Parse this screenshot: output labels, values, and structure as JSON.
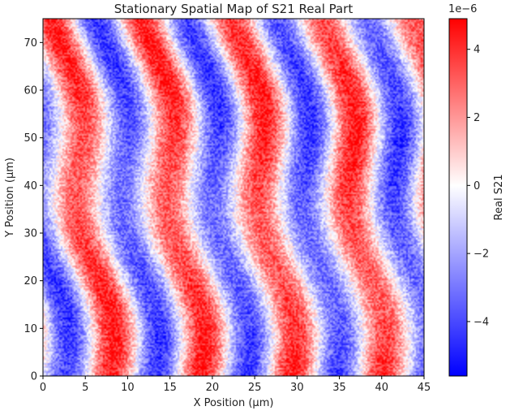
{
  "chart_data": {
    "type": "heatmap",
    "title": "Stationary Spatial Map of S21 Real Part",
    "xlabel": "X Position (μm)",
    "ylabel": "Y Position (μm)",
    "xlim": [
      0,
      45
    ],
    "ylim": [
      0,
      75
    ],
    "x_ticks": [
      0,
      5,
      10,
      15,
      20,
      25,
      30,
      35,
      40,
      45
    ],
    "y_ticks": [
      0,
      10,
      20,
      30,
      40,
      50,
      60,
      70
    ],
    "colorbar": {
      "label": "Real S21",
      "scale_label": "1e−6",
      "min": -5.6,
      "max": 4.9,
      "ticks": [
        4,
        2,
        0,
        -2,
        -4
      ],
      "colormap": [
        "#0000ff",
        "#ffffff",
        "#ff0000"
      ]
    },
    "pattern": {
      "description_values": "diagonal alternating stripes, tilted slightly toward -x as y increases",
      "wavelength_um": 10.7,
      "amplitude": 4.5,
      "offset": 0.0,
      "phase_peak_x_at_y0_um": 8.0,
      "tilt_um_per_um": -0.08,
      "wobble_amp_um": 1.2,
      "wobble_period_um": 45
    }
  }
}
